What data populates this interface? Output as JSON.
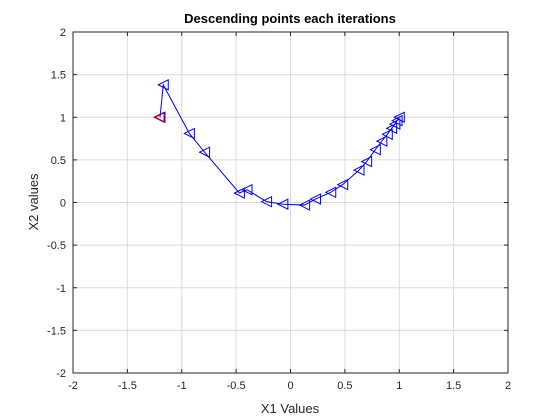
{
  "chart_data": {
    "type": "line",
    "title": "Descending points each iterations",
    "xlabel": "X1 Values",
    "ylabel": "X2 values",
    "xlim": [
      -2,
      2
    ],
    "ylim": [
      -2,
      2
    ],
    "xticks": [
      -2,
      -1.5,
      -1,
      -0.5,
      0,
      0.5,
      1,
      1.5,
      2
    ],
    "yticks": [
      -2,
      -1.5,
      -1,
      -0.5,
      0,
      0.5,
      1,
      1.5,
      2
    ],
    "xtick_labels": [
      "-2",
      "-1.5",
      "-1",
      "-0.5",
      "0",
      "0.5",
      "1",
      "1.5",
      "2"
    ],
    "ytick_labels": [
      "-2",
      "-1.5",
      "-1",
      "-0.5",
      "0",
      "0.5",
      "1",
      "1.5",
      "2"
    ],
    "grid": true,
    "series": [
      {
        "color": "#0000ff",
        "marker": "triangle-left",
        "x": [
          -1.2,
          -1.17,
          -0.93,
          -0.79,
          -0.47,
          -0.4,
          -0.22,
          -0.07,
          0.13,
          0.23,
          0.37,
          0.48,
          0.63,
          0.7,
          0.78,
          0.84,
          0.89,
          0.93,
          0.96,
          0.98,
          1.0
        ],
        "y": [
          1.0,
          1.38,
          0.81,
          0.59,
          0.11,
          0.15,
          0.01,
          -0.02,
          -0.03,
          0.04,
          0.12,
          0.21,
          0.38,
          0.48,
          0.62,
          0.72,
          0.8,
          0.87,
          0.92,
          0.96,
          1.0
        ]
      }
    ],
    "start_point": {
      "x": -1.2,
      "y": 1.0,
      "color": "#cc0000"
    }
  }
}
